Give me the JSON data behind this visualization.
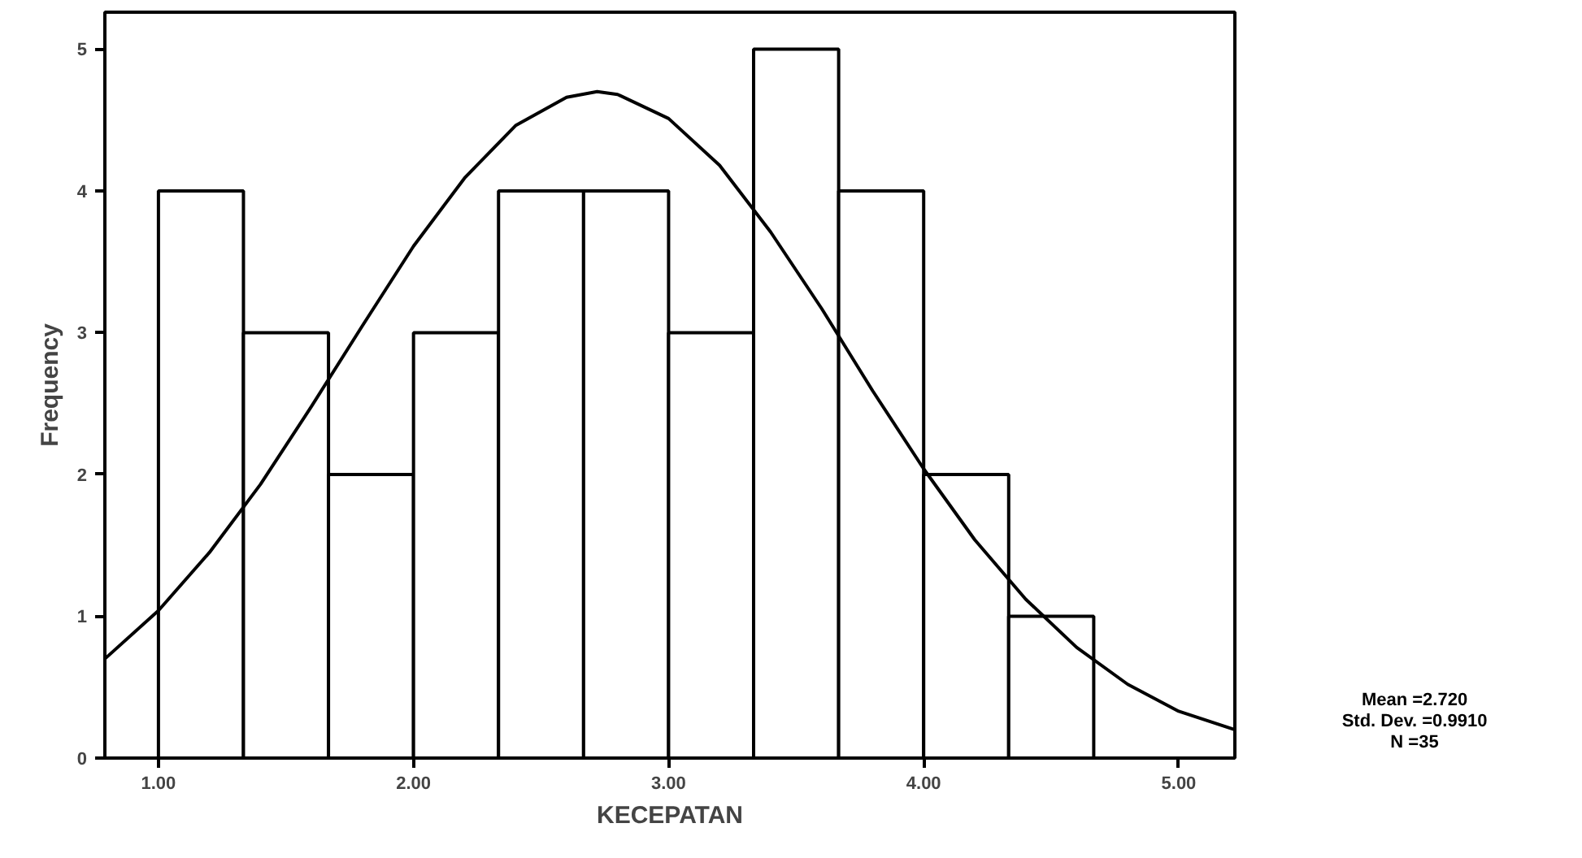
{
  "chart_data": {
    "type": "histogram",
    "xlabel": "KECEPATAN",
    "ylabel": "Frequency",
    "bins": [
      1.0,
      1.3333,
      1.6667,
      2.0,
      2.3333,
      2.6667,
      3.0,
      3.3333,
      3.6667,
      4.0,
      4.3333,
      4.6667
    ],
    "values": [
      4,
      3,
      2,
      3,
      4,
      4,
      3,
      5,
      4,
      2,
      1
    ],
    "color": "#ffffff",
    "series": [
      {
        "type": "line",
        "color": "#000000",
        "x": [
          0.79,
          1.0,
          1.2,
          1.4,
          1.6,
          1.8,
          2.0,
          2.2,
          2.4,
          2.6,
          2.72,
          2.8,
          3.0,
          3.2,
          3.4,
          3.6,
          3.8,
          4.0,
          4.2,
          4.4,
          4.6,
          4.8,
          5.0,
          5.22
        ],
        "values": [
          0.7,
          1.04,
          1.45,
          1.93,
          2.48,
          3.05,
          3.61,
          4.09,
          4.46,
          4.66,
          4.7,
          4.68,
          4.51,
          4.18,
          3.71,
          3.17,
          2.59,
          2.04,
          1.54,
          1.12,
          0.78,
          0.52,
          0.33,
          0.2
        ]
      }
    ],
    "xlim": [
      0.79,
      5.22
    ],
    "ylim": [
      0,
      5.26
    ],
    "xticks": [
      {
        "value": 1,
        "label": "1.00"
      },
      {
        "value": 2,
        "label": "2.00"
      },
      {
        "value": 3,
        "label": "3.00"
      },
      {
        "value": 4,
        "label": "4.00"
      },
      {
        "value": 5,
        "label": "5.00"
      }
    ],
    "yticks": [
      0,
      1,
      2,
      3,
      4,
      5
    ],
    "grid": false,
    "annotations": [
      "Mean =2.720",
      "Std. Dev. =0.9910",
      "N =35"
    ]
  }
}
